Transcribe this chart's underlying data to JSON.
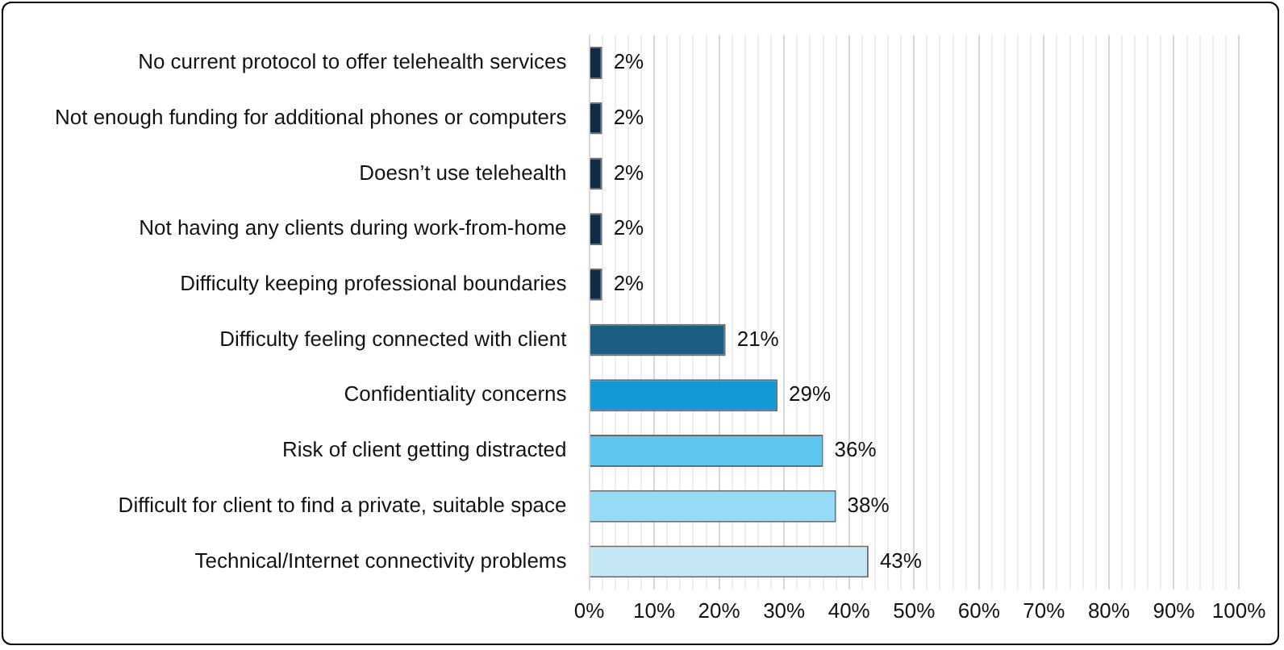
{
  "chart_data": {
    "type": "bar",
    "orientation": "horizontal",
    "categories": [
      "No current protocol to offer telehealth services",
      "Not enough funding for additional phones or computers",
      "Doesn’t use telehealth",
      "Not having any clients during work-from-home",
      "Difficulty keeping professional boundaries",
      "Difficulty feeling connected with client",
      "Confidentiality concerns",
      "Risk of client getting distracted",
      "Difficult for client to find a private, suitable space",
      "Technical/Internet connectivity problems"
    ],
    "values": [
      2,
      2,
      2,
      2,
      2,
      21,
      29,
      36,
      38,
      43
    ],
    "colors": [
      "#102a47",
      "#102a47",
      "#102a47",
      "#102a47",
      "#102a47",
      "#1b5e82",
      "#139ad6",
      "#5cc6ef",
      "#96dbf5",
      "#c4e6f5"
    ],
    "value_labels": [
      "2%",
      "2%",
      "2%",
      "2%",
      "2%",
      "21%",
      "29%",
      "36%",
      "38%",
      "43%"
    ],
    "xlim": [
      0,
      100
    ],
    "xticks": [
      {
        "value": 0,
        "label": "0%"
      },
      {
        "value": 2,
        "label": null
      },
      {
        "value": 4,
        "label": null
      },
      {
        "value": 6,
        "label": null
      },
      {
        "value": 8,
        "label": null
      },
      {
        "value": 10,
        "label": "10%"
      },
      {
        "value": 12,
        "label": null
      },
      {
        "value": 14,
        "label": null
      },
      {
        "value": 16,
        "label": null
      },
      {
        "value": 18,
        "label": null
      },
      {
        "value": 20,
        "label": "20%"
      },
      {
        "value": 22,
        "label": null
      },
      {
        "value": 24,
        "label": null
      },
      {
        "value": 26,
        "label": null
      },
      {
        "value": 28,
        "label": null
      },
      {
        "value": 30,
        "label": "30%"
      },
      {
        "value": 32,
        "label": null
      },
      {
        "value": 34,
        "label": null
      },
      {
        "value": 36,
        "label": null
      },
      {
        "value": 38,
        "label": null
      },
      {
        "value": 40,
        "label": "40%"
      },
      {
        "value": 42,
        "label": null
      },
      {
        "value": 44,
        "label": null
      },
      {
        "value": 46,
        "label": null
      },
      {
        "value": 48,
        "label": null
      },
      {
        "value": 50,
        "label": "50%"
      },
      {
        "value": 52,
        "label": null
      },
      {
        "value": 54,
        "label": null
      },
      {
        "value": 56,
        "label": null
      },
      {
        "value": 58,
        "label": null
      },
      {
        "value": 60,
        "label": "60%"
      },
      {
        "value": 62,
        "label": null
      },
      {
        "value": 64,
        "label": null
      },
      {
        "value": 66,
        "label": null
      },
      {
        "value": 68,
        "label": null
      },
      {
        "value": 70,
        "label": "70%"
      },
      {
        "value": 72,
        "label": null
      },
      {
        "value": 74,
        "label": null
      },
      {
        "value": 76,
        "label": null
      },
      {
        "value": 78,
        "label": null
      },
      {
        "value": 80,
        "label": "80%"
      },
      {
        "value": 82,
        "label": null
      },
      {
        "value": 84,
        "label": null
      },
      {
        "value": 86,
        "label": null
      },
      {
        "value": 88,
        "label": null
      },
      {
        "value": 90,
        "label": "90%"
      },
      {
        "value": 92,
        "label": null
      },
      {
        "value": 94,
        "label": null
      },
      {
        "value": 96,
        "label": null
      },
      {
        "value": 98,
        "label": null
      },
      {
        "value": 100,
        "label": "100%"
      }
    ],
    "grid": "x",
    "legend": false
  }
}
